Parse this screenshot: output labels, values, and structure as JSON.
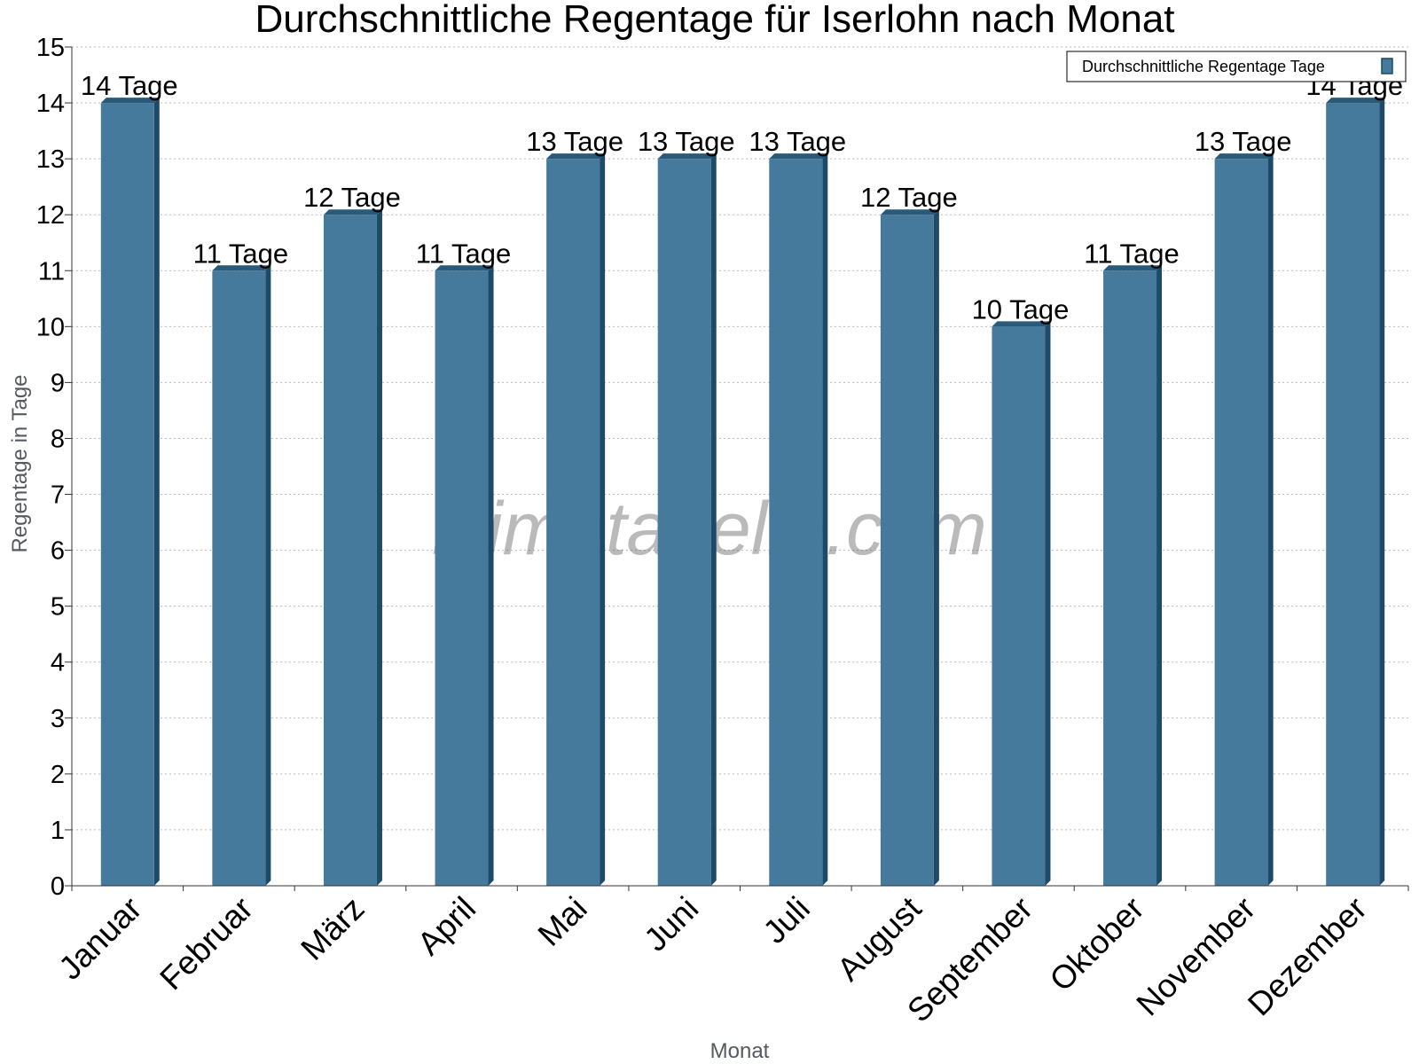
{
  "chart_data": {
    "type": "bar",
    "title": "Durchschnittliche Regentage für Iserlohn nach Monat",
    "xlabel": "Monat",
    "ylabel": "Regentage in Tage",
    "categories": [
      "Januar",
      "Februar",
      "März",
      "April",
      "Mai",
      "Juni",
      "Juli",
      "August",
      "September",
      "Oktober",
      "November",
      "Dezember"
    ],
    "series": [
      {
        "name": "Durchschnittliche Regentage Tage",
        "values": [
          14,
          11,
          12,
          11,
          13,
          13,
          13,
          12,
          10,
          11,
          13,
          14
        ],
        "labels": [
          "14 Tage",
          "11 Tage",
          "12 Tage",
          "11 Tage",
          "13 Tage",
          "13 Tage",
          "13 Tage",
          "12 Tage",
          "10 Tage",
          "11 Tage",
          "13 Tage",
          "14 Tage"
        ]
      }
    ],
    "ylim": [
      0,
      15
    ],
    "yticks": [
      0,
      1,
      2,
      3,
      4,
      5,
      6,
      7,
      8,
      9,
      10,
      11,
      12,
      13,
      14,
      15
    ],
    "grid": true,
    "legend_position": "top-right",
    "watermark": "klimatabelle.com",
    "colors": {
      "bar": "#457a9c",
      "bar_side": "#1c4a68",
      "bar_top": "#2a5a7a",
      "grid": "#bbbbbb",
      "axis": "#333333"
    }
  }
}
